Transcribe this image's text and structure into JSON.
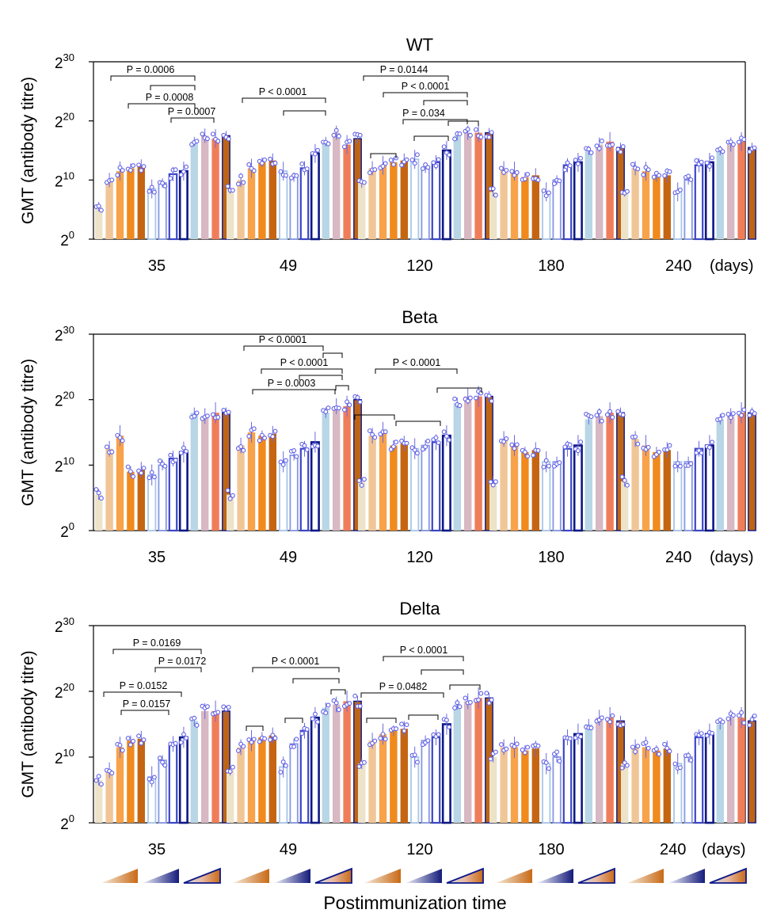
{
  "chart_data": {
    "type": "bar",
    "xlabel": "Postimmunization time",
    "ylabel": "GMT (antibody titre)",
    "y_scale": "log2",
    "ylim_exponent": [
      0,
      30
    ],
    "yticks": [
      {
        "base": "2",
        "exp": "0"
      },
      {
        "base": "2",
        "exp": "10"
      },
      {
        "base": "2",
        "exp": "20"
      },
      {
        "base": "2",
        "exp": "30"
      }
    ],
    "categories": [
      "35",
      "49",
      "120",
      "180",
      "240"
    ],
    "unit_label": "(days)",
    "palette": {
      "ctrl": "#ece3c8",
      "o1": "#f1c697",
      "o2": "#f8a24a",
      "o3": "#f08a1c",
      "o4": "#c56512",
      "b1": "#a8c6ea",
      "b2": "#8596e4",
      "b3": "#3a46c8",
      "b4": "#0d1887",
      "c1": "#b9d6e6",
      "c2": "#d7b8c3",
      "c3": "#f07d5a",
      "c4": "#be6515",
      "dot": "#6060e6",
      "axis": "#000000"
    },
    "bar_styles": [
      "ctrl",
      "o1",
      "o2",
      "o3",
      "o4",
      "b1",
      "b2",
      "b3",
      "b4",
      "c1",
      "c2",
      "c3",
      "c4"
    ],
    "panels": [
      {
        "title": "WT",
        "series_log2": [
          [
            5.5,
            10,
            11.5,
            12,
            8.5,
            9.5,
            11,
            11.5,
            16.5,
            17.5,
            17,
            17.5
          ],
          [
            8.5,
            10,
            12,
            13,
            11.5,
            10.5,
            12,
            14.5,
            16.5,
            18,
            16,
            17
          ],
          [
            9.5,
            12,
            12.5,
            13,
            13.5,
            12,
            13,
            15,
            17.5,
            18,
            18,
            18
          ],
          [
            8,
            12,
            11.5,
            10.5,
            8,
            10,
            12.5,
            13,
            15,
            16,
            16.5,
            15.5
          ],
          [
            8,
            12,
            11.5,
            10.5,
            8,
            10,
            12.5,
            13,
            15,
            16,
            16.5,
            15.5
          ]
        ],
        "p_values": [
          "P = 0.0006",
          "P = 0.0008",
          "P = 0.0007",
          "P < 0.0001",
          "P = 0.0144",
          "P < 0.0001",
          "P = 0.034"
        ]
      },
      {
        "title": "Beta",
        "series_log2": [
          [
            5.5,
            12.5,
            14.5,
            9,
            8.5,
            10,
            11,
            12,
            18,
            17.5,
            18,
            18
          ],
          [
            5.5,
            13,
            15,
            14.5,
            10.5,
            11.5,
            12.5,
            13.5,
            18,
            19,
            19,
            20
          ],
          [
            7.5,
            14.5,
            15,
            13,
            12.5,
            13,
            13.5,
            14.5,
            19.5,
            20.5,
            20.5,
            20.5
          ],
          [
            7.5,
            14,
            13,
            12,
            10.5,
            10.5,
            12.5,
            13,
            17,
            17.5,
            18,
            18
          ],
          [
            7.5,
            14,
            13,
            12,
            10.5,
            10.5,
            12.5,
            13,
            17,
            17.5,
            18,
            18
          ]
        ],
        "p_values": [
          "P < 0.0001",
          "P < 0.0001",
          "P = 0.0003",
          "P < 0.0001"
        ]
      },
      {
        "title": "Delta",
        "series_log2": [
          [
            6.5,
            8,
            11.5,
            12.5,
            7,
            9.5,
            12,
            13,
            15.5,
            17,
            17,
            17
          ],
          [
            8,
            11.5,
            12.5,
            13,
            8.5,
            12,
            14,
            16,
            17.5,
            18,
            18.5,
            18.5
          ],
          [
            9,
            12.5,
            13.5,
            14,
            10,
            12.5,
            13,
            15,
            18,
            18.5,
            19,
            19
          ],
          [
            10,
            11.5,
            11.5,
            11,
            9,
            10,
            13,
            13.5,
            15,
            16,
            16,
            15.5
          ],
          [
            9,
            11.5,
            11.5,
            11,
            9,
            10,
            13,
            13.5,
            15,
            16,
            16,
            15.5
          ]
        ],
        "p_values": [
          "P = 0.0169",
          "P = 0.0172",
          "P = 0.0152",
          "P = 0.0157",
          "P < 0.0001",
          "P < 0.0001",
          "P = 0.0482"
        ]
      }
    ]
  }
}
